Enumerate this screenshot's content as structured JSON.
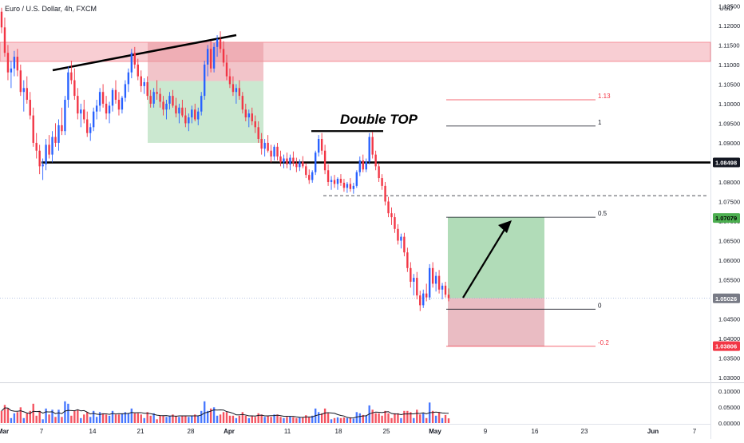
{
  "header": {
    "symbol_title": "Euro / U.S. Dollar, 4h, FXCM",
    "currency": "USD"
  },
  "colors": {
    "up": "#2962ff",
    "down": "#f23645",
    "resistance_fill": "#f3a6ae",
    "target_fill": "#a8d8b0",
    "stop_fill": "#e8b5bd",
    "text": "#131722",
    "price_tag_green": "#4caf50",
    "price_tag_red": "#f23645",
    "price_tag_gray": "#787b86"
  },
  "chart_data": {
    "type": "candlestick",
    "instrument": "EUR/USD",
    "timeframe": "4h",
    "x_ticks": [
      "Mar",
      "7",
      "14",
      "21",
      "28",
      "Apr",
      "11",
      "18",
      "25",
      "May",
      "9",
      "16",
      "23",
      "Jun",
      "7"
    ],
    "y_axis": {
      "ticks": [
        "1.12500",
        "1.12000",
        "1.11500",
        "1.11000",
        "1.10500",
        "1.10000",
        "1.09500",
        "1.09000",
        "1.08500",
        "1.08000",
        "1.07500",
        "1.07000",
        "1.06500",
        "1.06000",
        "1.05500",
        "1.05000",
        "1.04500",
        "1.04000",
        "1.03500",
        "1.03000"
      ],
      "range": [
        1.029,
        1.1265
      ]
    },
    "price_labels": [
      {
        "value": "1.08498",
        "style": "black"
      },
      {
        "value": "1.07079",
        "style": "green"
      },
      {
        "value": "1.05026",
        "style": "gray"
      },
      {
        "value": "1.03806",
        "style": "red"
      }
    ],
    "annotations": {
      "double_top": "Double TOP",
      "fib_levels": [
        {
          "label": "1.13",
          "price": 1.101
        },
        {
          "label": "1",
          "price": 1.0943
        },
        {
          "label": "0.5",
          "price": 1.071
        },
        {
          "label": "0",
          "price": 1.0475
        },
        {
          "label": "-0.2",
          "price": 1.038
        }
      ]
    },
    "volume_axis": {
      "ticks": [
        "0.10000",
        "0.05000",
        "0.00000"
      ],
      "range": [
        0,
        0.12
      ]
    },
    "candles": [
      [
        1.1235,
        1.1245,
        1.118,
        1.1195
      ],
      [
        1.1195,
        1.122,
        1.112,
        1.113
      ],
      [
        1.113,
        1.115,
        1.106,
        1.108
      ],
      [
        1.108,
        1.111,
        1.104,
        1.109
      ],
      [
        1.109,
        1.1135,
        1.107,
        1.112
      ],
      [
        1.112,
        1.114,
        1.107,
        1.1085
      ],
      [
        1.1085,
        1.11,
        1.102,
        1.103
      ],
      [
        1.103,
        1.106,
        1.098,
        1.104
      ],
      [
        1.104,
        1.107,
        1.1,
        1.101
      ],
      [
        1.101,
        1.103,
        1.096,
        1.097
      ],
      [
        1.097,
        1.099,
        1.089,
        1.09
      ],
      [
        1.09,
        1.0925,
        1.086,
        1.088
      ],
      [
        1.088,
        1.0895,
        1.082,
        1.084
      ],
      [
        1.084,
        1.086,
        1.0805,
        1.0845
      ],
      [
        1.0845,
        1.091,
        1.083,
        1.0895
      ],
      [
        1.0895,
        1.092,
        1.086,
        1.087
      ],
      [
        1.087,
        1.093,
        1.085,
        1.0915
      ],
      [
        1.0915,
        1.095,
        1.089,
        1.09
      ],
      [
        1.09,
        1.096,
        1.088,
        1.0945
      ],
      [
        1.0945,
        1.099,
        1.092,
        1.093
      ],
      [
        1.093,
        1.102,
        1.092,
        1.101
      ],
      [
        1.101,
        1.1095,
        1.099,
        1.108
      ],
      [
        1.108,
        1.111,
        1.105,
        1.106
      ],
      [
        1.106,
        1.109,
        1.101,
        1.102
      ],
      [
        1.102,
        1.104,
        1.096,
        1.0975
      ],
      [
        1.0975,
        1.1,
        1.094,
        1.0985
      ],
      [
        1.0985,
        1.101,
        1.095,
        1.096
      ],
      [
        1.096,
        1.098,
        1.0915,
        1.0925
      ],
      [
        1.0925,
        1.095,
        1.0905,
        1.094
      ],
      [
        1.094,
        1.099,
        1.093,
        1.098
      ],
      [
        1.098,
        1.101,
        1.096,
        1.0995
      ],
      [
        1.0995,
        1.104,
        1.098,
        1.103
      ],
      [
        1.103,
        1.105,
        1.099,
        1.1
      ],
      [
        1.1,
        1.102,
        1.096,
        1.0975
      ],
      [
        1.0975,
        1.1005,
        1.095,
        1.0995
      ],
      [
        1.0995,
        1.104,
        1.098,
        1.1035
      ],
      [
        1.1035,
        1.106,
        1.1,
        1.101
      ],
      [
        1.101,
        1.103,
        1.097,
        1.0985
      ],
      [
        1.0985,
        1.102,
        1.0975,
        1.1015
      ],
      [
        1.1015,
        1.106,
        1.1005,
        1.105
      ],
      [
        1.105,
        1.109,
        1.103,
        1.108
      ],
      [
        1.108,
        1.114,
        1.1065,
        1.113
      ],
      [
        1.113,
        1.1145,
        1.109,
        1.11
      ],
      [
        1.11,
        1.1115,
        1.106,
        1.107
      ],
      [
        1.107,
        1.1085,
        1.103,
        1.1045
      ],
      [
        1.1045,
        1.1065,
        1.1025,
        1.1055
      ],
      [
        1.1055,
        1.107,
        1.101,
        1.102
      ],
      [
        1.102,
        1.1035,
        1.099,
        1.1
      ],
      [
        1.1,
        1.104,
        1.099,
        1.103
      ],
      [
        1.103,
        1.106,
        1.101,
        1.1025
      ],
      [
        1.1025,
        1.104,
        1.099,
        1.1005
      ],
      [
        1.1005,
        1.102,
        1.097,
        1.0985
      ],
      [
        1.0985,
        1.101,
        1.096,
        1.1
      ],
      [
        1.1,
        1.103,
        1.0985,
        1.102
      ],
      [
        1.102,
        1.1035,
        1.099,
        1.0995
      ],
      [
        1.0995,
        1.1015,
        1.0965,
        1.0975
      ],
      [
        1.0975,
        1.1,
        1.095,
        1.099
      ],
      [
        1.099,
        1.101,
        1.0965,
        1.097
      ],
      [
        1.097,
        1.099,
        1.094,
        1.095
      ],
      [
        1.095,
        1.0975,
        1.093,
        1.0965
      ],
      [
        1.0965,
        1.0995,
        1.095,
        1.0985
      ],
      [
        1.0985,
        1.1,
        1.0955,
        1.096
      ],
      [
        1.096,
        1.099,
        1.0945,
        1.098
      ],
      [
        1.098,
        1.103,
        1.097,
        1.102
      ],
      [
        1.102,
        1.111,
        1.101,
        1.11
      ],
      [
        1.11,
        1.115,
        1.107,
        1.114
      ],
      [
        1.114,
        1.116,
        1.108,
        1.109
      ],
      [
        1.109,
        1.1155,
        1.108,
        1.1145
      ],
      [
        1.1145,
        1.1175,
        1.112,
        1.1165
      ],
      [
        1.1165,
        1.1185,
        1.113,
        1.114
      ],
      [
        1.114,
        1.116,
        1.1095,
        1.1105
      ],
      [
        1.1105,
        1.1125,
        1.106,
        1.107
      ],
      [
        1.107,
        1.109,
        1.104,
        1.105
      ],
      [
        1.105,
        1.107,
        1.102,
        1.103
      ],
      [
        1.103,
        1.105,
        1.1,
        1.104
      ],
      [
        1.104,
        1.106,
        1.101,
        1.102
      ],
      [
        1.102,
        1.103,
        1.0975,
        1.0985
      ],
      [
        1.0985,
        1.1,
        1.0955,
        1.0965
      ],
      [
        1.0965,
        1.0985,
        1.094,
        1.0975
      ],
      [
        1.0975,
        1.099,
        1.0945,
        1.0955
      ],
      [
        1.0955,
        1.097,
        1.0925,
        1.094
      ],
      [
        1.094,
        1.0955,
        1.09,
        1.091
      ],
      [
        1.091,
        1.0925,
        1.087,
        1.0885
      ],
      [
        1.0885,
        1.091,
        1.0865,
        1.09
      ],
      [
        1.09,
        1.092,
        1.0875,
        1.088
      ],
      [
        1.088,
        1.0895,
        1.085,
        1.0865
      ],
      [
        1.0865,
        1.0895,
        1.0855,
        1.089
      ],
      [
        1.089,
        1.09,
        1.0855,
        1.0865
      ],
      [
        1.0865,
        1.088,
        1.084,
        1.085
      ],
      [
        1.085,
        1.087,
        1.0835,
        1.086
      ],
      [
        1.086,
        1.0875,
        1.0835,
        1.0845
      ],
      [
        1.0845,
        1.087,
        1.083,
        1.0862
      ],
      [
        1.0862,
        1.0878,
        1.084,
        1.0848
      ],
      [
        1.0848,
        1.0862,
        1.0825,
        1.0838
      ],
      [
        1.0838,
        1.0858,
        1.0828,
        1.0852
      ],
      [
        1.0852,
        1.0866,
        1.0835,
        1.084
      ],
      [
        1.084,
        1.0848,
        1.081,
        1.0818
      ],
      [
        1.0818,
        1.0832,
        1.0795,
        1.0805
      ],
      [
        1.0805,
        1.083,
        1.0798,
        1.0825
      ],
      [
        1.0825,
        1.088,
        1.0818,
        1.0875
      ],
      [
        1.0875,
        1.092,
        1.0865,
        1.091
      ],
      [
        1.091,
        1.0925,
        1.087,
        1.088
      ],
      [
        1.088,
        1.0895,
        1.082,
        1.083
      ],
      [
        1.083,
        1.0845,
        1.079,
        1.08
      ],
      [
        1.08,
        1.0815,
        1.078,
        1.0805
      ],
      [
        1.0805,
        1.0818,
        1.0785,
        1.0795
      ],
      [
        1.0795,
        1.0812,
        1.078,
        1.0808
      ],
      [
        1.0808,
        1.082,
        1.079,
        1.0798
      ],
      [
        1.0798,
        1.0808,
        1.0775,
        1.0785
      ],
      [
        1.0785,
        1.08,
        1.0772,
        1.0795
      ],
      [
        1.0795,
        1.081,
        1.0775,
        1.0782
      ],
      [
        1.0782,
        1.0798,
        1.077,
        1.079
      ],
      [
        1.079,
        1.083,
        1.0785,
        1.0825
      ],
      [
        1.0825,
        1.0865,
        1.0815,
        1.0855
      ],
      [
        1.0855,
        1.087,
        1.0825,
        1.0832
      ],
      [
        1.0832,
        1.086,
        1.0825,
        1.0852
      ],
      [
        1.0852,
        1.0925,
        1.0845,
        1.0915
      ],
      [
        1.0915,
        1.0928,
        1.086,
        1.087
      ],
      [
        1.087,
        1.088,
        1.083,
        1.084
      ],
      [
        1.084,
        1.0848,
        1.08,
        1.081
      ],
      [
        1.081,
        1.082,
        1.078,
        1.079
      ],
      [
        1.079,
        1.08,
        1.074,
        1.075
      ],
      [
        1.075,
        1.0762,
        1.071,
        1.072
      ],
      [
        1.072,
        1.0735,
        1.069,
        1.071
      ],
      [
        1.071,
        1.072,
        1.067,
        1.068
      ],
      [
        1.068,
        1.0692,
        1.064,
        1.065
      ],
      [
        1.065,
        1.0668,
        1.063,
        1.066
      ],
      [
        1.066,
        1.067,
        1.061,
        1.062
      ],
      [
        1.062,
        1.0632,
        1.057,
        1.058
      ],
      [
        1.058,
        1.0595,
        1.053,
        1.0545
      ],
      [
        1.0545,
        1.0565,
        1.051,
        1.0555
      ],
      [
        1.0555,
        1.057,
        1.05,
        1.051
      ],
      [
        1.051,
        1.0522,
        1.047,
        1.0485
      ],
      [
        1.0485,
        1.0525,
        1.0478,
        1.0515
      ],
      [
        1.0515,
        1.054,
        1.0495,
        1.0505
      ],
      [
        1.0505,
        1.059,
        1.0498,
        1.058
      ],
      [
        1.058,
        1.0595,
        1.053,
        1.054
      ],
      [
        1.054,
        1.057,
        1.052,
        1.056
      ],
      [
        1.056,
        1.0575,
        1.0515,
        1.0525
      ],
      [
        1.0525,
        1.0542,
        1.05,
        1.0535
      ],
      [
        1.0535,
        1.0545,
        1.0505,
        1.0512
      ],
      [
        1.0512,
        1.0528,
        1.0495,
        1.0503
      ]
    ]
  }
}
